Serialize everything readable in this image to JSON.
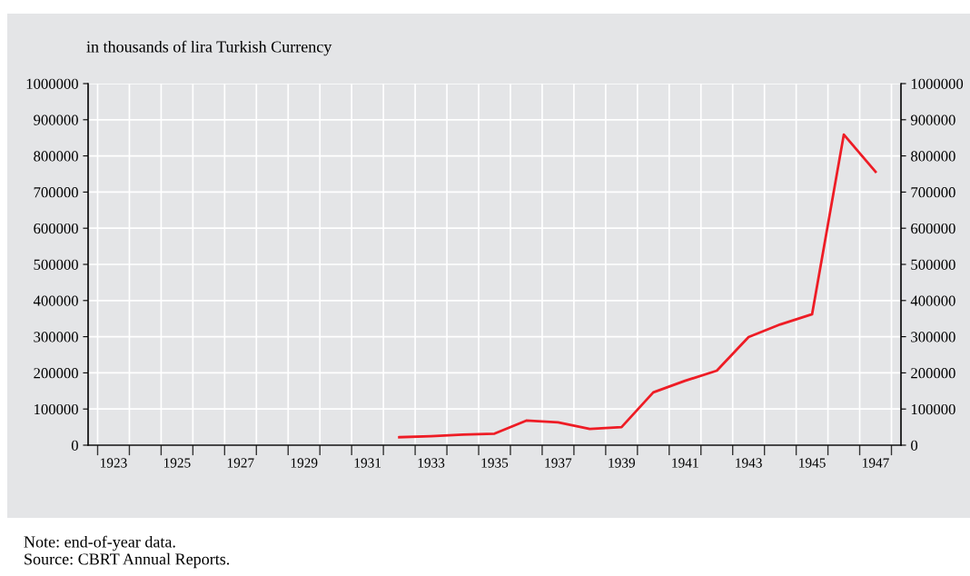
{
  "chart_data": {
    "type": "line",
    "ylabel": "in thousands of lira Turkish Currency",
    "categories": [
      "1923",
      null,
      "1925",
      null,
      "1927",
      null,
      "1929",
      null,
      "1931",
      null,
      "1933",
      null,
      "1935",
      null,
      "1937",
      null,
      "1939",
      null,
      "1941",
      null,
      "1943",
      null,
      "1945",
      null,
      "1947"
    ],
    "series": [
      {
        "color": "#ee1c25",
        "values": [
          null,
          null,
          null,
          null,
          null,
          null,
          null,
          null,
          null,
          22000,
          25000,
          29000,
          32000,
          68000,
          63000,
          45000,
          50000,
          146000,
          178000,
          206000,
          299000,
          334000,
          362000,
          859000,
          756000
        ]
      }
    ],
    "ylim": [
      0,
      1000000
    ],
    "yticks": [
      0,
      100000,
      200000,
      300000,
      400000,
      500000,
      600000,
      700000,
      800000,
      900000,
      1000000
    ],
    "y2lim": [
      0,
      1000000
    ],
    "y2ticks": [
      0,
      100000,
      200000,
      300000,
      400000,
      500000,
      600000,
      700000,
      800000,
      900000,
      1000000
    ],
    "grid": true,
    "marker": "none",
    "line_style": "solid",
    "annotations": [
      "Note: end-of-year data.",
      "Source: CBRT Annual Reports."
    ]
  }
}
